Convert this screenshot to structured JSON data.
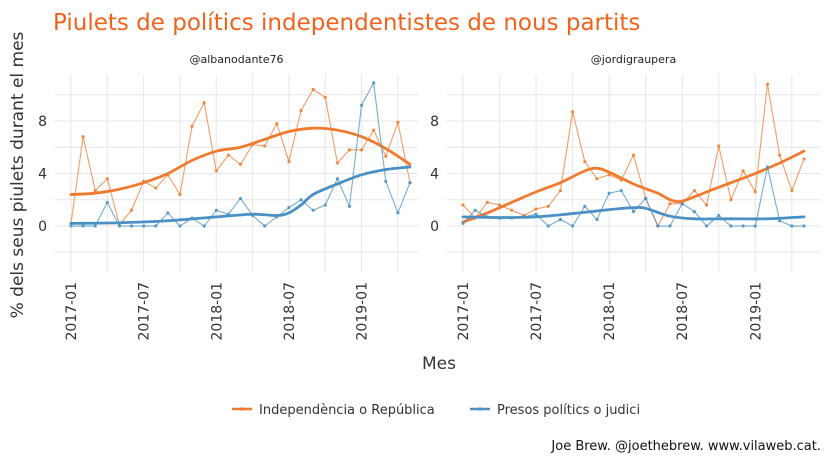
{
  "chart_data": {
    "type": "line",
    "title": "Piulets de polítics independentistes de nous partits",
    "xlabel": "Mes",
    "ylabel": "% dels seus piulets durant el mes",
    "ylim": [
      -3.5,
      11.5
    ],
    "yticks": [
      0,
      4,
      8
    ],
    "ytick_labels": [
      "0",
      "4",
      "8"
    ],
    "xticks": [
      0,
      6,
      12,
      18,
      24
    ],
    "xtick_labels": [
      "2017-01",
      "2017-07",
      "2018-01",
      "2018-07",
      "2019-01"
    ],
    "x_unit": "months since 2017-01",
    "legend_position": "bottom",
    "caption": "Joe Brew. @joethebrew. www.vilaweb.cat.",
    "series_meta": [
      {
        "name": "Independència o República",
        "color": "#f07b2f"
      },
      {
        "name": "Presos polítics o judici",
        "color": "#4a90c4"
      }
    ],
    "panels": [
      {
        "title": "@albanodante76",
        "series": [
          {
            "name": "Independència o República",
            "points": [
              [
                0,
                0.2
              ],
              [
                1,
                6.8
              ],
              [
                2,
                2.7
              ],
              [
                3,
                3.6
              ],
              [
                4,
                0.1
              ],
              [
                5,
                1.2
              ],
              [
                6,
                3.4
              ],
              [
                7,
                2.9
              ],
              [
                8,
                3.9
              ],
              [
                9,
                2.4
              ],
              [
                10,
                7.6
              ],
              [
                11,
                9.4
              ],
              [
                12,
                4.2
              ],
              [
                13,
                5.4
              ],
              [
                14,
                4.7
              ],
              [
                15,
                6.2
              ],
              [
                16,
                6.1
              ],
              [
                17,
                7.8
              ],
              [
                18,
                4.9
              ],
              [
                19,
                8.8
              ],
              [
                20,
                10.4
              ],
              [
                21,
                9.8
              ],
              [
                22,
                4.8
              ],
              [
                23,
                5.8
              ],
              [
                24,
                5.8
              ],
              [
                25,
                7.3
              ],
              [
                26,
                5.3
              ],
              [
                27,
                7.9
              ],
              [
                28,
                3.3
              ]
            ],
            "smooth": [
              [
                0,
                2.4
              ],
              [
                2,
                2.5
              ],
              [
                4,
                2.8
              ],
              [
                6,
                3.3
              ],
              [
                8,
                4.0
              ],
              [
                10,
                5.0
              ],
              [
                12,
                5.7
              ],
              [
                14,
                6.0
              ],
              [
                16,
                6.6
              ],
              [
                18,
                7.2
              ],
              [
                20,
                7.45
              ],
              [
                22,
                7.3
              ],
              [
                24,
                6.8
              ],
              [
                26,
                5.9
              ],
              [
                28,
                4.7
              ]
            ]
          },
          {
            "name": "Presos polítics o judici",
            "points": [
              [
                0,
                0.0
              ],
              [
                1,
                0.0
              ],
              [
                2,
                0.0
              ],
              [
                3,
                1.8
              ],
              [
                4,
                0.0
              ],
              [
                5,
                0.0
              ],
              [
                6,
                0.0
              ],
              [
                7,
                0.0
              ],
              [
                8,
                1.0
              ],
              [
                9,
                0.0
              ],
              [
                10,
                0.6
              ],
              [
                11,
                0.0
              ],
              [
                12,
                1.2
              ],
              [
                13,
                0.9
              ],
              [
                14,
                2.1
              ],
              [
                15,
                0.8
              ],
              [
                16,
                0.0
              ],
              [
                17,
                0.7
              ],
              [
                18,
                1.4
              ],
              [
                19,
                2.0
              ],
              [
                20,
                1.2
              ],
              [
                21,
                1.6
              ],
              [
                22,
                3.6
              ],
              [
                23,
                1.5
              ],
              [
                24,
                9.2
              ],
              [
                25,
                10.9
              ],
              [
                26,
                3.4
              ],
              [
                27,
                1.0
              ],
              [
                28,
                3.3
              ]
            ],
            "smooth": [
              [
                0,
                0.2
              ],
              [
                4,
                0.25
              ],
              [
                8,
                0.4
              ],
              [
                12,
                0.7
              ],
              [
                15,
                0.9
              ],
              [
                17,
                0.8
              ],
              [
                18,
                1.0
              ],
              [
                19,
                1.6
              ],
              [
                20,
                2.4
              ],
              [
                22,
                3.2
              ],
              [
                24,
                3.9
              ],
              [
                26,
                4.3
              ],
              [
                28,
                4.5
              ]
            ]
          }
        ]
      },
      {
        "title": "@jordigraupera",
        "series": [
          {
            "name": "Independència o República",
            "points": [
              [
                0,
                1.6
              ],
              [
                1,
                0.6
              ],
              [
                2,
                1.8
              ],
              [
                3,
                1.6
              ],
              [
                4,
                1.2
              ],
              [
                5,
                0.8
              ],
              [
                6,
                1.3
              ],
              [
                7,
                1.5
              ],
              [
                8,
                2.7
              ],
              [
                9,
                8.7
              ],
              [
                10,
                4.9
              ],
              [
                11,
                3.6
              ],
              [
                12,
                3.9
              ],
              [
                13,
                3.5
              ],
              [
                14,
                5.4
              ],
              [
                15,
                2.1
              ],
              [
                16,
                0.0
              ],
              [
                17,
                1.7
              ],
              [
                18,
                1.7
              ],
              [
                19,
                2.7
              ],
              [
                20,
                1.6
              ],
              [
                21,
                6.1
              ],
              [
                22,
                2.0
              ],
              [
                23,
                4.2
              ],
              [
                24,
                2.6
              ],
              [
                25,
                10.8
              ],
              [
                26,
                5.4
              ],
              [
                27,
                2.7
              ],
              [
                28,
                5.1
              ]
            ],
            "smooth": [
              [
                0,
                0.3
              ],
              [
                2,
                1.0
              ],
              [
                4,
                1.8
              ],
              [
                6,
                2.6
              ],
              [
                8,
                3.3
              ],
              [
                10,
                4.2
              ],
              [
                11,
                4.4
              ],
              [
                12,
                4.1
              ],
              [
                14,
                3.2
              ],
              [
                16,
                2.5
              ],
              [
                17,
                2.0
              ],
              [
                18,
                1.9
              ],
              [
                20,
                2.6
              ],
              [
                22,
                3.3
              ],
              [
                24,
                4.0
              ],
              [
                26,
                4.8
              ],
              [
                28,
                5.7
              ]
            ]
          },
          {
            "name": "Presos polítics o judici",
            "points": [
              [
                0,
                0.2
              ],
              [
                1,
                1.2
              ],
              [
                2,
                0.7
              ],
              [
                3,
                0.6
              ],
              [
                4,
                0.6
              ],
              [
                5,
                0.7
              ],
              [
                6,
                0.9
              ],
              [
                7,
                0.0
              ],
              [
                8,
                0.5
              ],
              [
                9,
                0.0
              ],
              [
                10,
                1.5
              ],
              [
                11,
                0.5
              ],
              [
                12,
                2.5
              ],
              [
                13,
                2.7
              ],
              [
                14,
                1.1
              ],
              [
                15,
                2.1
              ],
              [
                16,
                0.0
              ],
              [
                17,
                0.0
              ],
              [
                18,
                1.7
              ],
              [
                19,
                1.1
              ],
              [
                20,
                0.0
              ],
              [
                21,
                0.8
              ],
              [
                22,
                0.0
              ],
              [
                23,
                0.0
              ],
              [
                24,
                0.0
              ],
              [
                25,
                4.5
              ],
              [
                26,
                0.4
              ],
              [
                27,
                0.0
              ],
              [
                28,
                0.0
              ]
            ],
            "smooth": [
              [
                0,
                0.7
              ],
              [
                3,
                0.65
              ],
              [
                6,
                0.7
              ],
              [
                9,
                0.95
              ],
              [
                12,
                1.25
              ],
              [
                14,
                1.4
              ],
              [
                15,
                1.35
              ],
              [
                17,
                0.75
              ],
              [
                19,
                0.55
              ],
              [
                22,
                0.55
              ],
              [
                25,
                0.55
              ],
              [
                28,
                0.7
              ]
            ]
          }
        ]
      }
    ]
  }
}
